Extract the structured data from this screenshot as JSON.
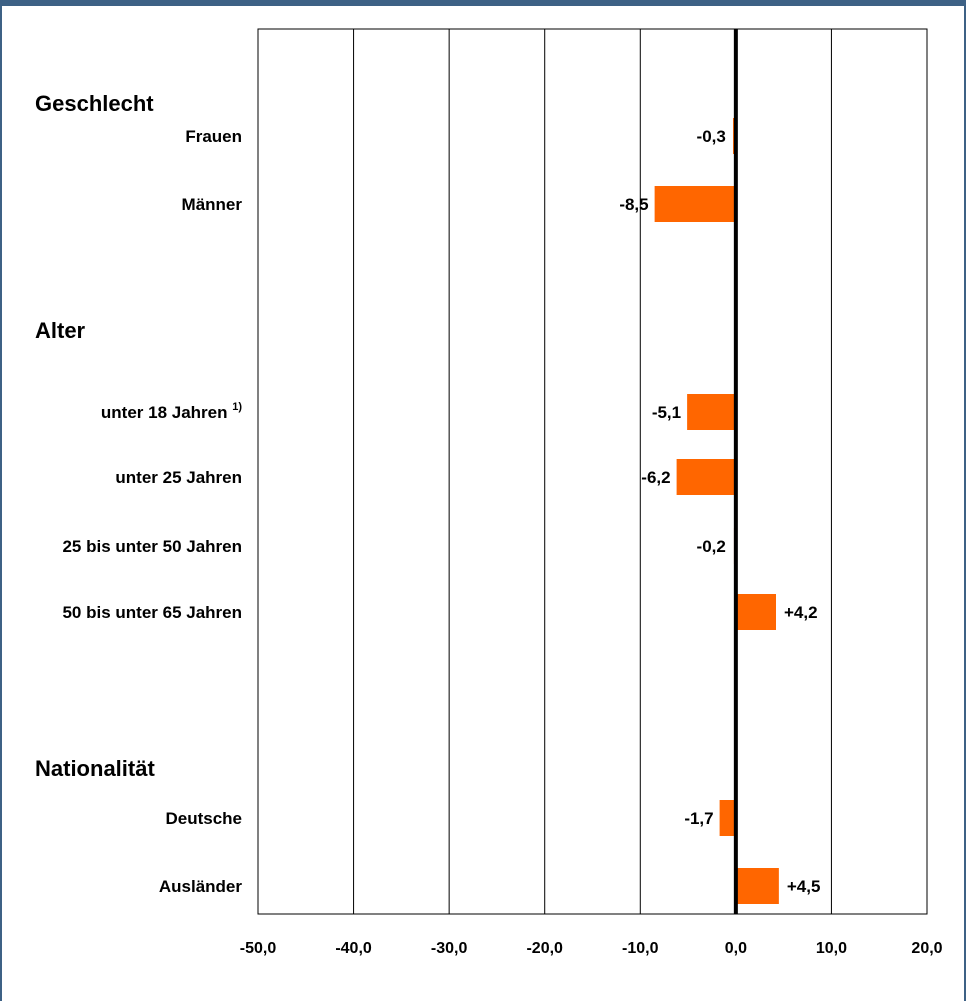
{
  "chart_data": {
    "type": "bar",
    "orientation": "horizontal",
    "title": "",
    "xlabel": "",
    "ylabel": "",
    "xlim": [
      -50,
      20
    ],
    "x_ticks": [
      -50,
      -40,
      -30,
      -20,
      -10,
      0,
      10,
      20
    ],
    "x_tick_labels": [
      "-50,0",
      "-40,0",
      "-30,0",
      "-20,0",
      "-10,0",
      "0,0",
      "10,0",
      "20,0"
    ],
    "grid": "vertical",
    "legend": "none",
    "bar_color": "#ff6600",
    "groups": [
      {
        "title": "Geschlecht",
        "items": [
          {
            "label": "Frauen",
            "footnote": "",
            "value": -0.3,
            "value_label": "-0,3"
          },
          {
            "label": "Männer",
            "footnote": "",
            "value": -8.5,
            "value_label": "-8,5"
          }
        ]
      },
      {
        "title": "Alter",
        "items": [
          {
            "label": "unter 18 Jahren",
            "footnote": "1)",
            "value": -5.1,
            "value_label": "-5,1"
          },
          {
            "label": "unter 25 Jahren",
            "footnote": "",
            "value": -6.2,
            "value_label": "-6,2"
          },
          {
            "label": "25 bis unter 50 Jahren",
            "footnote": "",
            "value": -0.2,
            "value_label": "-0,2"
          },
          {
            "label": "50 bis unter 65 Jahren",
            "footnote": "",
            "value": 4.2,
            "value_label": "+4,2"
          }
        ]
      },
      {
        "title": "Nationalität",
        "items": [
          {
            "label": "Deutsche",
            "footnote": "",
            "value": -1.7,
            "value_label": "-1,7"
          },
          {
            "label": "Ausländer",
            "footnote": "",
            "value": 4.5,
            "value_label": "+4,5"
          }
        ]
      }
    ]
  }
}
